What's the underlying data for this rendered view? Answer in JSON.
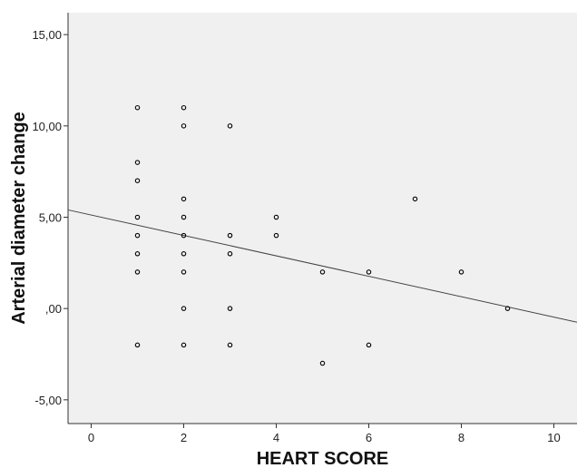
{
  "chart_data": {
    "type": "scatter",
    "xlabel": "HEART SCORE",
    "ylabel": "Arterial diameter change",
    "xlim": [
      -0.5,
      10.5
    ],
    "ylim": [
      -6.3,
      16.2
    ],
    "x_ticks": [
      0,
      2,
      4,
      6,
      8,
      10
    ],
    "x_tick_labels": [
      "0",
      "2",
      "4",
      "6",
      "8",
      "10"
    ],
    "y_ticks": [
      -5,
      0,
      5,
      10,
      15
    ],
    "y_tick_labels": [
      "-5,00",
      ",00",
      "5,00",
      "10,00",
      "15,00"
    ],
    "grid": false,
    "plot_background": "#f0f0f0",
    "marker_color": "#000000",
    "points": [
      {
        "x": 1,
        "y": 11
      },
      {
        "x": 1,
        "y": 8
      },
      {
        "x": 1,
        "y": 7
      },
      {
        "x": 1,
        "y": 5
      },
      {
        "x": 1,
        "y": 4
      },
      {
        "x": 1,
        "y": 3
      },
      {
        "x": 1,
        "y": 2
      },
      {
        "x": 1,
        "y": -2
      },
      {
        "x": 2,
        "y": 11
      },
      {
        "x": 2,
        "y": 10
      },
      {
        "x": 2,
        "y": 6
      },
      {
        "x": 2,
        "y": 5
      },
      {
        "x": 2,
        "y": 4
      },
      {
        "x": 2,
        "y": 3
      },
      {
        "x": 2,
        "y": 2
      },
      {
        "x": 2,
        "y": 0
      },
      {
        "x": 2,
        "y": -2
      },
      {
        "x": 3,
        "y": 10
      },
      {
        "x": 3,
        "y": 4
      },
      {
        "x": 3,
        "y": 3
      },
      {
        "x": 3,
        "y": 0
      },
      {
        "x": 3,
        "y": -2
      },
      {
        "x": 4,
        "y": 5
      },
      {
        "x": 4,
        "y": 4
      },
      {
        "x": 5,
        "y": 2
      },
      {
        "x": 5,
        "y": -3
      },
      {
        "x": 6,
        "y": 2
      },
      {
        "x": 6,
        "y": -2
      },
      {
        "x": 7,
        "y": 6
      },
      {
        "x": 8,
        "y": 2
      },
      {
        "x": 9,
        "y": 0
      }
    ],
    "fit_line": {
      "x": [
        -0.5,
        10.5
      ],
      "y": [
        5.4,
        -0.75
      ]
    }
  }
}
